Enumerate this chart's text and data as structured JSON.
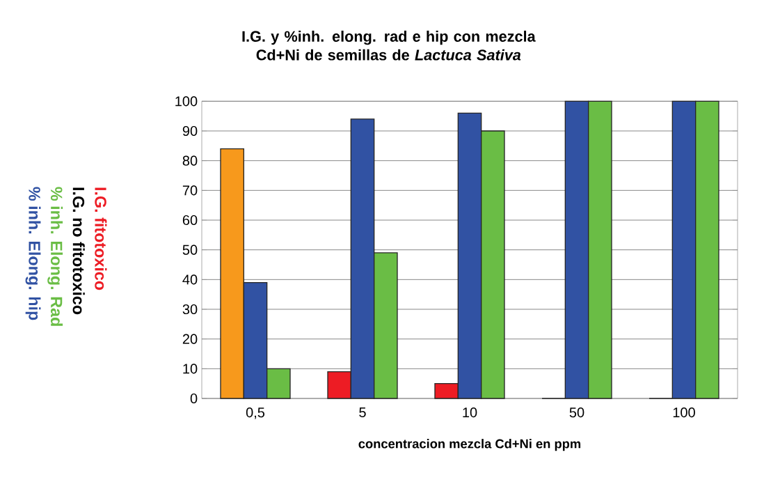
{
  "chart_data": {
    "type": "bar",
    "title": "I.G. y %inh. elong. rad e hip con mezcla Cd+Ni de semillas de *Lactuca Sativa*",
    "xlabel": "concentracion mezcla Cd+Ni en ppm",
    "categories": [
      "0,5",
      "5",
      "10",
      "50",
      "100"
    ],
    "series": [
      {
        "name": "I.G. fitotoxico",
        "color": "#ed1c24",
        "colors": [
          "#f7991c",
          "#ed1c24",
          "#ed1c24",
          "#ed1c24",
          "#ed1c24"
        ],
        "values": [
          84,
          9,
          5,
          0,
          0
        ]
      },
      {
        "name": "% inh. Elong. hip",
        "color": "#3152a3",
        "values": [
          39,
          94,
          96,
          100,
          100
        ]
      },
      {
        "name": "% inh. Elong. Rad",
        "color": "#6abd45",
        "values": [
          10,
          49,
          90,
          100,
          100
        ]
      }
    ],
    "annotations": [
      "I.G. no fitotoxico"
    ],
    "ylim": [
      0,
      100
    ],
    "yticks": [
      0,
      10,
      20,
      30,
      40,
      50,
      60,
      70,
      80,
      90,
      100
    ],
    "grid": "y",
    "legend": "left"
  }
}
